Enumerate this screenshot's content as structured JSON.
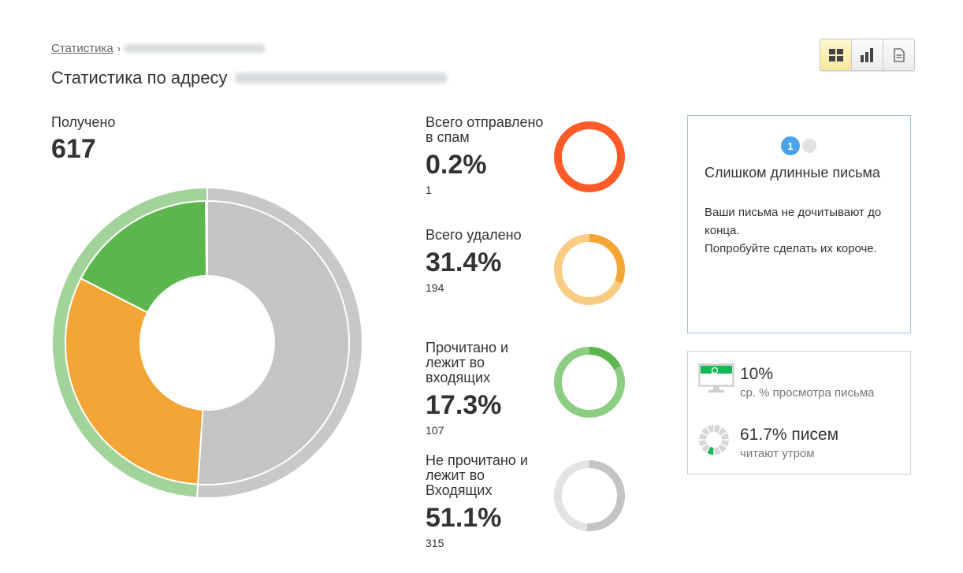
{
  "breadcrumb": {
    "link": "Статистика",
    "separator": "›"
  },
  "page_title": "Статистика по адресу",
  "view_switch": {
    "options": [
      "grid-view-icon",
      "bar-chart-view-icon",
      "document-view-icon"
    ],
    "active": "grid-view-icon"
  },
  "received": {
    "label": "Получено",
    "value": "617"
  },
  "stats": [
    {
      "label": "Всего отправлено в спам",
      "percent": "0.2%",
      "count": "1",
      "fraction": 0.002,
      "color": "#fd5c28",
      "track": "#fd5c28"
    },
    {
      "label": "Всего удалено",
      "percent": "31.4%",
      "count": "194",
      "fraction": 0.314,
      "color": "#f3a536",
      "track": "#f8cc82"
    },
    {
      "label": "Прочитано и лежит во входящих",
      "percent": "17.3%",
      "count": "107",
      "fraction": 0.173,
      "color": "#5db54d",
      "track": "#8bcd81"
    },
    {
      "label": "Не прочитано и лежит во Входящих",
      "percent": "51.1%",
      "count": "315",
      "fraction": 0.511,
      "color": "#c4c4c4",
      "track": "#e3e3e3"
    }
  ],
  "chart_data": {
    "type": "pie",
    "total": 617,
    "inner_ring": {
      "slices": [
        {
          "label": "Не прочитано и лежит во Входящих",
          "value": 315,
          "percent": 51.1,
          "color": "#c4c4c4"
        },
        {
          "label": "Всего удалено",
          "value": 194,
          "percent": 31.4,
          "color": "#f3a536"
        },
        {
          "label": "Прочитано и лежит во входящих",
          "value": 107,
          "percent": 17.3,
          "color": "#5db54d"
        },
        {
          "label": "Всего отправлено в спам",
          "value": 1,
          "percent": 0.2,
          "color": "#fd5c28"
        }
      ]
    },
    "outer_ring": {
      "slices": [
        {
          "label": "Не прочитано",
          "value": 315,
          "color": "#c8c8c8"
        },
        {
          "label": "Прочитано",
          "value": 302,
          "color": "#a2d39a"
        }
      ]
    }
  },
  "tip": {
    "page_current": "1",
    "title": "Слишком длинные письма",
    "body_line1": "Ваши письма не дочитывают до конца.",
    "body_line2": "Попробуйте сделать их короче."
  },
  "metrics": {
    "view_value": "10%",
    "view_label": "ср. % просмотра письма",
    "view_icon": "monitor-icon",
    "morning_value": "61.7% писем",
    "morning_label": "читают утром",
    "morning_fraction": 0.617,
    "morning_icon": "clock-segments-icon",
    "accent_color": "#0fbb55"
  }
}
